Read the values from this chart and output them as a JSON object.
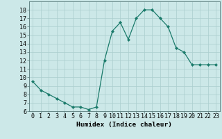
{
  "x": [
    0,
    1,
    2,
    3,
    4,
    5,
    6,
    7,
    8,
    9,
    10,
    11,
    12,
    13,
    14,
    15,
    16,
    17,
    18,
    19,
    20,
    21,
    22,
    23
  ],
  "y": [
    9.5,
    8.5,
    8.0,
    7.5,
    7.0,
    6.5,
    6.5,
    6.2,
    6.5,
    12.0,
    15.5,
    16.5,
    14.5,
    17.0,
    18.0,
    18.0,
    17.0,
    16.0,
    13.5,
    13.0,
    11.5,
    11.5,
    11.5,
    11.5
  ],
  "line_color": "#1a7a6a",
  "marker": "D",
  "marker_size": 2.2,
  "bg_color": "#cce8e8",
  "grid_color": "#aacece",
  "xlabel": "Humidex (Indice chaleur)",
  "ylim": [
    6,
    19
  ],
  "xlim": [
    -0.5,
    23.5
  ],
  "yticks": [
    6,
    7,
    8,
    9,
    10,
    11,
    12,
    13,
    14,
    15,
    16,
    17,
    18
  ],
  "xticks": [
    0,
    1,
    2,
    3,
    4,
    5,
    6,
    7,
    8,
    9,
    10,
    11,
    12,
    13,
    14,
    15,
    16,
    17,
    18,
    19,
    20,
    21,
    22,
    23
  ],
  "xlabel_fontsize": 6.8,
  "tick_fontsize": 6.0
}
